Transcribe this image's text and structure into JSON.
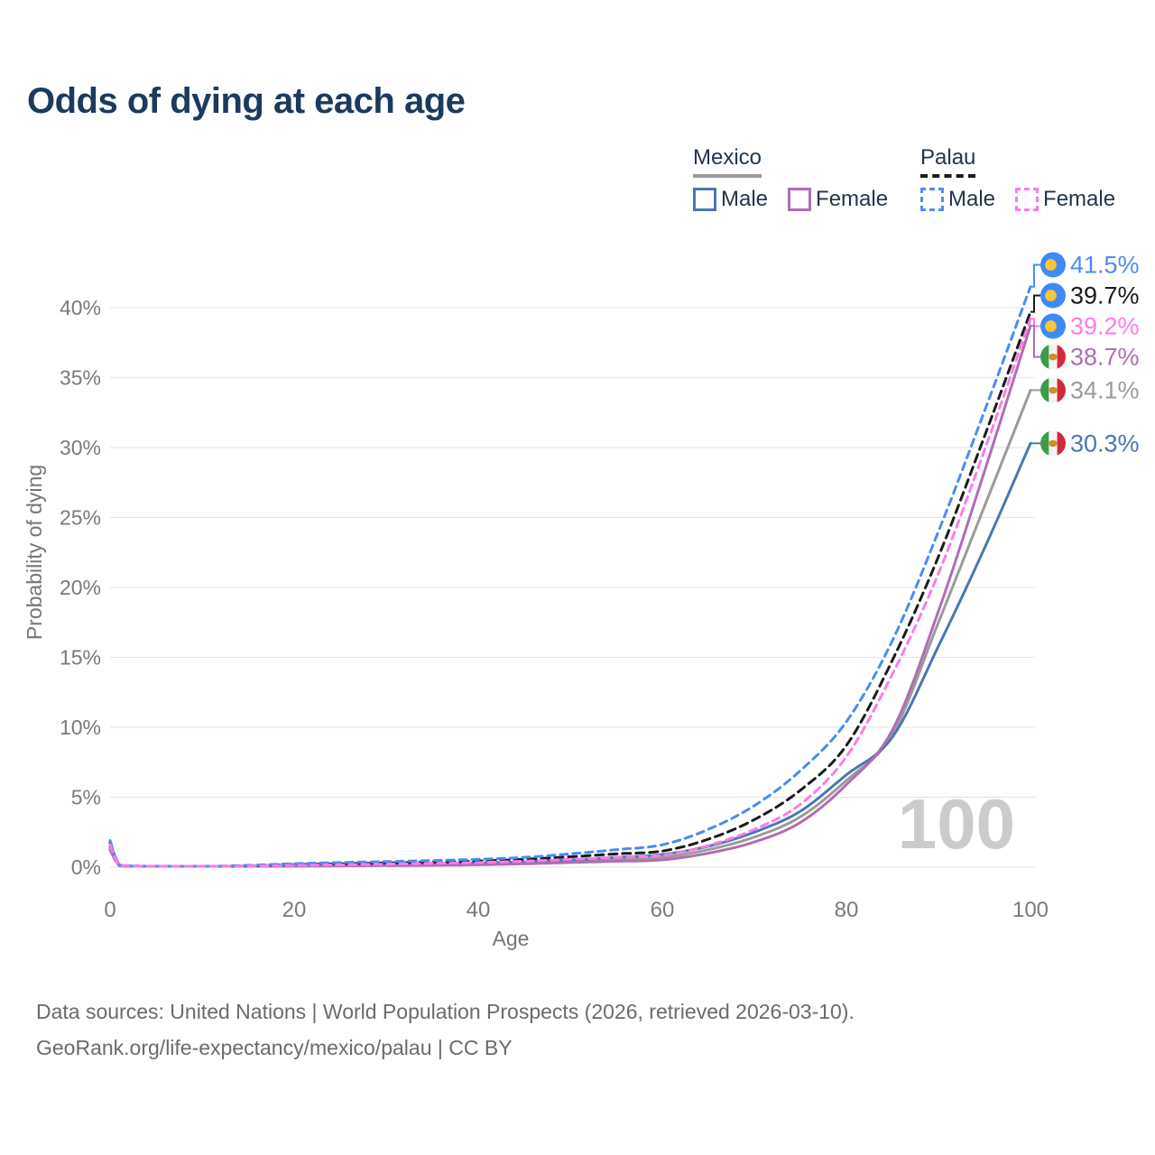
{
  "title": "Odds of dying at each age",
  "legend": {
    "groups": [
      {
        "label": "Mexico",
        "line_style": "solid",
        "underline_color": "#9a9a9a",
        "items": [
          {
            "label": "Male",
            "color": "#4a77b4"
          },
          {
            "label": "Female",
            "color": "#af6eb4"
          }
        ]
      },
      {
        "label": "Palau",
        "line_style": "dashed",
        "underline_color": "#1a1a1a",
        "items": [
          {
            "label": "Male",
            "color": "#4a8cf2"
          },
          {
            "label": "Female",
            "color": "#fb7ce8"
          }
        ]
      }
    ]
  },
  "watermark": "100",
  "footer": {
    "line1": "Data sources: United Nations | World Population Prospects (2026, retrieved 2026-03-10).",
    "line2": "GeoRank.org/life-expectancy/mexico/palau | CC BY"
  },
  "chart_data": {
    "type": "line",
    "title": "Odds of dying at each age",
    "xlabel": "Age",
    "ylabel": "Probability of dying",
    "xlim": [
      0,
      100
    ],
    "ylim": [
      0,
      43
    ],
    "grid": "horizontal",
    "legend_position": "top-right",
    "x_ticks": [
      0,
      20,
      40,
      60,
      80,
      100
    ],
    "y_ticks": [
      {
        "v": 0,
        "label": "0%"
      },
      {
        "v": 5,
        "label": "5%"
      },
      {
        "v": 10,
        "label": "10%"
      },
      {
        "v": 15,
        "label": "15%"
      },
      {
        "v": 20,
        "label": "20%"
      },
      {
        "v": 25,
        "label": "25%"
      },
      {
        "v": 30,
        "label": "30%"
      },
      {
        "v": 35,
        "label": "35%"
      },
      {
        "v": 40,
        "label": "40%"
      }
    ],
    "x": [
      0,
      1,
      2,
      5,
      10,
      15,
      20,
      25,
      30,
      35,
      40,
      45,
      50,
      55,
      60,
      65,
      70,
      75,
      80,
      85,
      90,
      95,
      100
    ],
    "series": [
      {
        "name": "Mexico",
        "country": "Mexico",
        "sex": "Both",
        "color": "#9b9b9b",
        "line_style": "solid",
        "flag": "mexico",
        "end_label": "34.1%",
        "end_value": 34.1,
        "values": [
          1.4,
          0.11,
          0.065,
          0.035,
          0.035,
          0.07,
          0.12,
          0.15,
          0.17,
          0.2,
          0.24,
          0.31,
          0.42,
          0.56,
          0.7,
          1.25,
          2.15,
          3.6,
          6.2,
          9.5,
          17.5,
          25.8,
          34.1
        ]
      },
      {
        "name": "Mexico Male",
        "country": "Mexico",
        "sex": "Male",
        "color": "#4a77b4",
        "line_style": "solid",
        "flag": "mexico",
        "end_label": "30.3%",
        "end_value": 30.3,
        "values": [
          1.5,
          0.12,
          0.07,
          0.04,
          0.04,
          0.09,
          0.16,
          0.2,
          0.24,
          0.26,
          0.3,
          0.38,
          0.52,
          0.7,
          0.9,
          1.5,
          2.5,
          4.0,
          6.6,
          9.3,
          15.8,
          22.8,
          30.3
        ]
      },
      {
        "name": "Mexico Female",
        "country": "Mexico",
        "sex": "Female",
        "color": "#af6eb4",
        "line_style": "solid",
        "flag": "mexico",
        "end_label": "38.7%",
        "end_value": 38.7,
        "values": [
          1.25,
          0.1,
          0.06,
          0.03,
          0.03,
          0.05,
          0.07,
          0.09,
          0.11,
          0.13,
          0.17,
          0.24,
          0.33,
          0.42,
          0.52,
          1.0,
          1.8,
          3.2,
          5.9,
          9.8,
          18.3,
          28.3,
          38.7
        ]
      },
      {
        "name": "Palau",
        "country": "Palau",
        "sex": "Both",
        "color": "#1a1a1a",
        "line_style": "dashed",
        "flag": "palau",
        "end_label": "39.7%",
        "end_value": 39.7,
        "values": [
          1.75,
          0.14,
          0.08,
          0.05,
          0.05,
          0.1,
          0.18,
          0.24,
          0.3,
          0.36,
          0.44,
          0.56,
          0.74,
          0.95,
          1.15,
          2.0,
          3.4,
          5.5,
          8.7,
          14.8,
          22.2,
          30.8,
          39.7
        ]
      },
      {
        "name": "Palau Male",
        "country": "Palau",
        "sex": "Male",
        "color": "#4a8cf2",
        "line_style": "dashed",
        "flag": "palau",
        "end_label": "41.5%",
        "end_value": 41.5,
        "values": [
          1.9,
          0.16,
          0.09,
          0.06,
          0.06,
          0.13,
          0.25,
          0.33,
          0.4,
          0.47,
          0.56,
          0.7,
          0.95,
          1.25,
          1.6,
          2.7,
          4.4,
          6.9,
          10.4,
          16.2,
          24.0,
          32.6,
          41.5
        ]
      },
      {
        "name": "Palau Female",
        "country": "Palau",
        "sex": "Female",
        "color": "#fb7ce8",
        "line_style": "dashed",
        "flag": "palau",
        "end_label": "39.2%",
        "end_value": 39.2,
        "values": [
          1.6,
          0.12,
          0.07,
          0.04,
          0.04,
          0.08,
          0.13,
          0.17,
          0.22,
          0.27,
          0.33,
          0.43,
          0.56,
          0.7,
          0.85,
          1.55,
          2.7,
          4.5,
          7.9,
          13.8,
          21.0,
          29.8,
          39.2
        ]
      }
    ]
  }
}
